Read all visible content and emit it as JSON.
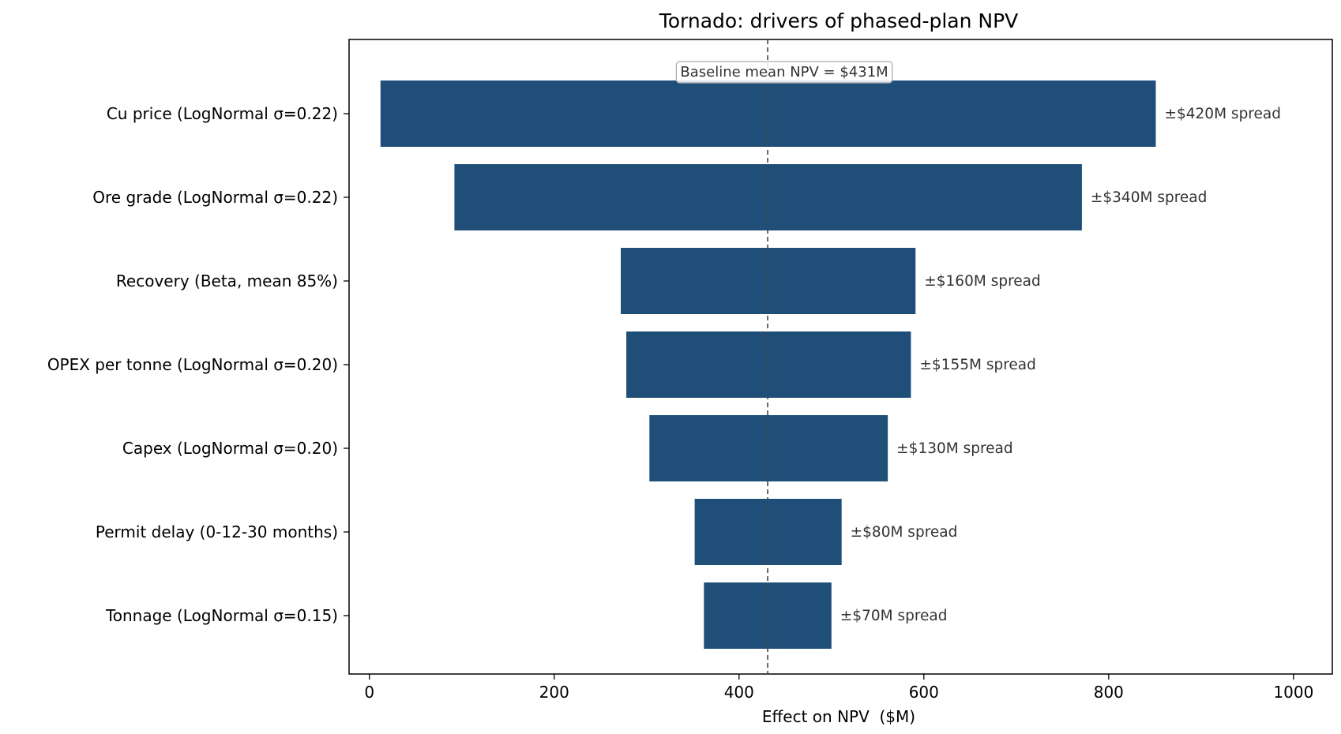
{
  "chart_data": {
    "type": "bar",
    "orientation": "horizontal",
    "title": "Tornado: drivers of phased-plan NPV",
    "xlabel": "Effect on NPV  ($M)",
    "ylabel": "",
    "xlim": [
      -22,
      1042
    ],
    "xticks": [
      0,
      200,
      400,
      600,
      800,
      1000
    ],
    "grid": false,
    "baseline": {
      "value": 431,
      "label": "Baseline mean NPV = $431M"
    },
    "bar_color": "#1f4e79",
    "categories": [
      "Cu price (LogNormal σ=0.22)",
      "Ore grade (LogNormal σ=0.22)",
      "Recovery (Beta, mean 85%)",
      "OPEX per tonne (LogNormal σ=0.20)",
      "Capex (LogNormal σ=0.20)",
      "Permit delay (0-12-30 months)",
      "Tonnage (LogNormal σ=0.15)"
    ],
    "series": [
      {
        "low": [
          12,
          92,
          272,
          278,
          303,
          352,
          362
        ],
        "high": [
          851,
          771,
          591,
          586,
          561,
          511,
          500
        ]
      }
    ],
    "data_labels": [
      "±$420M spread",
      "±$340M spread",
      "±$160M spread",
      "±$155M spread",
      "±$130M spread",
      "±$80M spread",
      "±$70M spread"
    ]
  }
}
